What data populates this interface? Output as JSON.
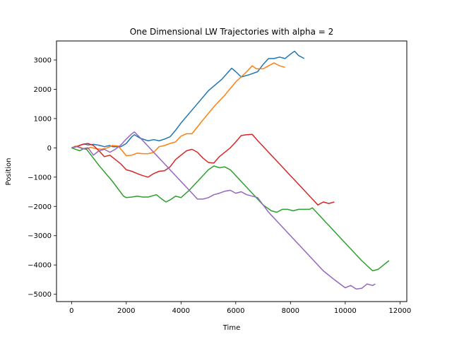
{
  "chart_data": {
    "type": "line",
    "title": "One Dimensional LW Trajectories with alpha = 2",
    "xlabel": "Time",
    "ylabel": "Position",
    "xlim": [
      -550,
      12250
    ],
    "ylim": [
      -5250,
      3650
    ],
    "xticks": [
      0,
      2000,
      4000,
      6000,
      8000,
      10000,
      12000
    ],
    "xtick_labels": [
      "0",
      "2000",
      "4000",
      "6000",
      "8000",
      "10000",
      "12000"
    ],
    "yticks": [
      -5000,
      -4000,
      -3000,
      -2000,
      -1000,
      0,
      1000,
      2000,
      3000
    ],
    "ytick_labels": [
      "−5000",
      "−4000",
      "−3000",
      "−2000",
      "−1000",
      "0",
      "1000",
      "2000",
      "3000"
    ],
    "grid": false,
    "series": [
      {
        "color": "#1f77b4",
        "points": [
          [
            0,
            0
          ],
          [
            150,
            30
          ],
          [
            300,
            80
          ],
          [
            450,
            130
          ],
          [
            600,
            100
          ],
          [
            800,
            120
          ],
          [
            1000,
            90
          ],
          [
            1200,
            40
          ],
          [
            1400,
            80
          ],
          [
            1500,
            40
          ],
          [
            1800,
            40
          ],
          [
            2000,
            150
          ],
          [
            2200,
            380
          ],
          [
            2300,
            450
          ],
          [
            2500,
            330
          ],
          [
            2800,
            240
          ],
          [
            3000,
            280
          ],
          [
            3200,
            240
          ],
          [
            3400,
            300
          ],
          [
            3600,
            380
          ],
          [
            3800,
            600
          ],
          [
            4000,
            850
          ],
          [
            4500,
            1400
          ],
          [
            5000,
            1950
          ],
          [
            5500,
            2350
          ],
          [
            5850,
            2720
          ],
          [
            6000,
            2600
          ],
          [
            6200,
            2420
          ],
          [
            6500,
            2500
          ],
          [
            6800,
            2600
          ],
          [
            7000,
            2850
          ],
          [
            7200,
            3050
          ],
          [
            7400,
            3050
          ],
          [
            7600,
            3100
          ],
          [
            7800,
            3050
          ],
          [
            8000,
            3200
          ],
          [
            8150,
            3300
          ],
          [
            8300,
            3150
          ],
          [
            8500,
            3050
          ]
        ]
      },
      {
        "color": "#ff7f0e",
        "points": [
          [
            0,
            0
          ],
          [
            150,
            60
          ],
          [
            300,
            20
          ],
          [
            500,
            -50
          ],
          [
            700,
            20
          ],
          [
            900,
            -30
          ],
          [
            1100,
            -50
          ],
          [
            1300,
            0
          ],
          [
            1500,
            80
          ],
          [
            1700,
            60
          ],
          [
            1900,
            -150
          ],
          [
            2000,
            -270
          ],
          [
            2200,
            -250
          ],
          [
            2400,
            -180
          ],
          [
            2600,
            -200
          ],
          [
            2800,
            -200
          ],
          [
            3000,
            -150
          ],
          [
            3200,
            40
          ],
          [
            3400,
            80
          ],
          [
            3600,
            150
          ],
          [
            3800,
            200
          ],
          [
            4000,
            400
          ],
          [
            4200,
            480
          ],
          [
            4400,
            480
          ],
          [
            4800,
            950
          ],
          [
            5200,
            1400
          ],
          [
            5600,
            1800
          ],
          [
            6000,
            2250
          ],
          [
            6400,
            2600
          ],
          [
            6600,
            2800
          ],
          [
            6750,
            2700
          ],
          [
            7000,
            2700
          ],
          [
            7200,
            2800
          ],
          [
            7400,
            2900
          ],
          [
            7600,
            2800
          ],
          [
            7800,
            2750
          ]
        ]
      },
      {
        "color": "#2ca02c",
        "points": [
          [
            0,
            0
          ],
          [
            150,
            -50
          ],
          [
            300,
            -100
          ],
          [
            450,
            -20
          ],
          [
            550,
            -50
          ],
          [
            1000,
            -600
          ],
          [
            1500,
            -1150
          ],
          [
            1900,
            -1650
          ],
          [
            2000,
            -1700
          ],
          [
            2200,
            -1680
          ],
          [
            2400,
            -1650
          ],
          [
            2600,
            -1680
          ],
          [
            2800,
            -1680
          ],
          [
            3100,
            -1600
          ],
          [
            3300,
            -1750
          ],
          [
            3450,
            -1850
          ],
          [
            3600,
            -1780
          ],
          [
            3800,
            -1650
          ],
          [
            4000,
            -1700
          ],
          [
            4300,
            -1450
          ],
          [
            4700,
            -1050
          ],
          [
            5000,
            -750
          ],
          [
            5200,
            -620
          ],
          [
            5400,
            -680
          ],
          [
            5600,
            -650
          ],
          [
            5800,
            -750
          ],
          [
            6200,
            -1150
          ],
          [
            6600,
            -1550
          ],
          [
            7000,
            -1950
          ],
          [
            7300,
            -2150
          ],
          [
            7500,
            -2200
          ],
          [
            7700,
            -2100
          ],
          [
            7900,
            -2100
          ],
          [
            8100,
            -2150
          ],
          [
            8300,
            -2100
          ],
          [
            8500,
            -2100
          ],
          [
            8700,
            -2100
          ],
          [
            8800,
            -2050
          ],
          [
            9400,
            -2650
          ],
          [
            10000,
            -3250
          ],
          [
            10600,
            -3850
          ],
          [
            11000,
            -4200
          ],
          [
            11200,
            -4150
          ],
          [
            11400,
            -4000
          ],
          [
            11600,
            -3850
          ]
        ]
      },
      {
        "color": "#d62728",
        "points": [
          [
            0,
            0
          ],
          [
            200,
            50
          ],
          [
            400,
            120
          ],
          [
            600,
            150
          ],
          [
            800,
            80
          ],
          [
            1000,
            -100
          ],
          [
            1200,
            -300
          ],
          [
            1400,
            -250
          ],
          [
            1600,
            -400
          ],
          [
            1800,
            -550
          ],
          [
            2000,
            -750
          ],
          [
            2200,
            -800
          ],
          [
            2400,
            -880
          ],
          [
            2600,
            -950
          ],
          [
            2800,
            -1000
          ],
          [
            3000,
            -880
          ],
          [
            3200,
            -800
          ],
          [
            3400,
            -780
          ],
          [
            3600,
            -650
          ],
          [
            3800,
            -400
          ],
          [
            4000,
            -250
          ],
          [
            4200,
            -100
          ],
          [
            4400,
            -50
          ],
          [
            4600,
            -150
          ],
          [
            4800,
            -350
          ],
          [
            5000,
            -500
          ],
          [
            5200,
            -520
          ],
          [
            5400,
            -300
          ],
          [
            5800,
            0
          ],
          [
            6000,
            200
          ],
          [
            6200,
            420
          ],
          [
            6400,
            450
          ],
          [
            6600,
            460
          ],
          [
            6800,
            250
          ],
          [
            7200,
            -150
          ],
          [
            7600,
            -550
          ],
          [
            8000,
            -950
          ],
          [
            8400,
            -1350
          ],
          [
            8800,
            -1750
          ],
          [
            9000,
            -1950
          ],
          [
            9200,
            -1850
          ],
          [
            9400,
            -1900
          ],
          [
            9600,
            -1850
          ]
        ]
      },
      {
        "color": "#9467bd",
        "points": [
          [
            0,
            0
          ],
          [
            200,
            40
          ],
          [
            400,
            -30
          ],
          [
            600,
            0
          ],
          [
            800,
            -250
          ],
          [
            1000,
            -100
          ],
          [
            1200,
            -50
          ],
          [
            1400,
            -150
          ],
          [
            1600,
            -50
          ],
          [
            1800,
            100
          ],
          [
            2000,
            300
          ],
          [
            2200,
            480
          ],
          [
            2300,
            540
          ],
          [
            2500,
            350
          ],
          [
            2800,
            50
          ],
          [
            3000,
            -150
          ],
          [
            3400,
            -550
          ],
          [
            3800,
            -950
          ],
          [
            4200,
            -1350
          ],
          [
            4600,
            -1750
          ],
          [
            4800,
            -1750
          ],
          [
            5000,
            -1700
          ],
          [
            5200,
            -1600
          ],
          [
            5400,
            -1550
          ],
          [
            5600,
            -1480
          ],
          [
            5800,
            -1450
          ],
          [
            6000,
            -1550
          ],
          [
            6200,
            -1500
          ],
          [
            6400,
            -1600
          ],
          [
            6600,
            -1650
          ],
          [
            6800,
            -1700
          ],
          [
            7200,
            -2200
          ],
          [
            7600,
            -2600
          ],
          [
            8000,
            -3000
          ],
          [
            8400,
            -3400
          ],
          [
            8800,
            -3800
          ],
          [
            9200,
            -4200
          ],
          [
            9600,
            -4500
          ],
          [
            10000,
            -4780
          ],
          [
            10200,
            -4700
          ],
          [
            10400,
            -4820
          ],
          [
            10600,
            -4800
          ],
          [
            10800,
            -4650
          ],
          [
            11000,
            -4700
          ],
          [
            11100,
            -4650
          ]
        ]
      }
    ]
  }
}
